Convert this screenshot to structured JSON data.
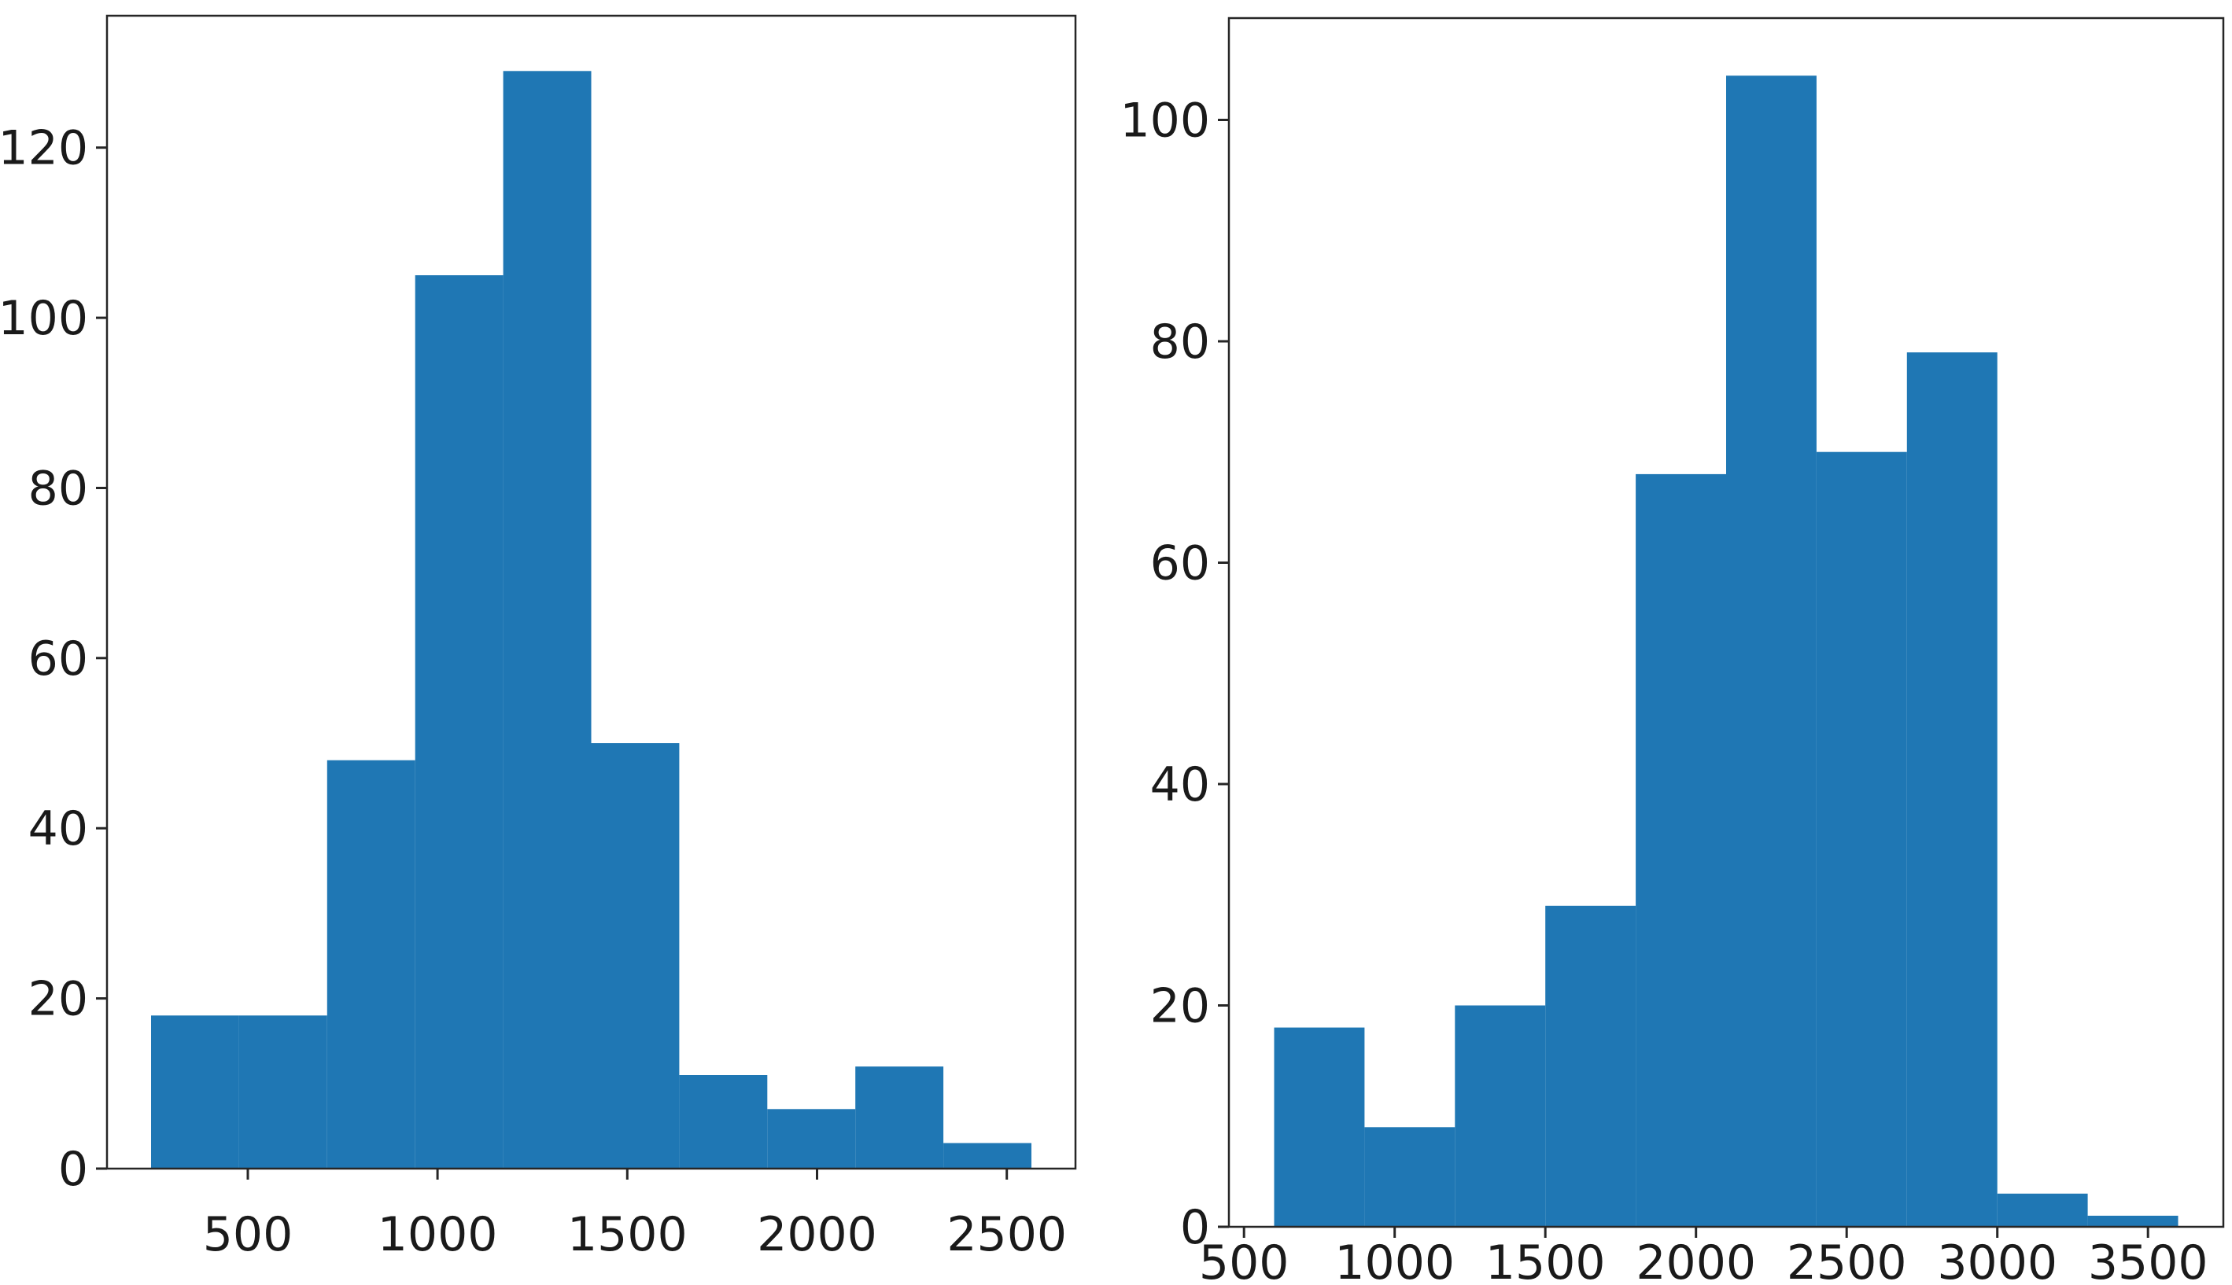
{
  "figure": {
    "background_color": "#ffffff",
    "description_left": "histogram of values, 10 bins, peak 129",
    "description_right": "histogram of values, 10 bins, peak 104"
  },
  "axes_style": {
    "bar_color": "#1f77b4",
    "spine_color": "#262626",
    "tick_color": "#262626",
    "tick_label_color": "#1a1a1a"
  },
  "chart_data": [
    {
      "type": "bar",
      "subtype": "histogram",
      "panel": "left",
      "title": "",
      "xlabel": "",
      "ylabel": "",
      "bin_edges": [
        245,
        477,
        709,
        941,
        1173,
        1405,
        1637,
        1869,
        2101,
        2333,
        2565
      ],
      "counts": [
        18,
        18,
        48,
        105,
        129,
        50,
        11,
        7,
        12,
        3
      ],
      "xticks": [
        500,
        1000,
        1500,
        2000,
        2500
      ],
      "yticks": [
        0,
        20,
        40,
        60,
        80,
        100,
        120
      ],
      "xlim": [
        129,
        2681
      ],
      "ylim": [
        0,
        135.5
      ],
      "grid": false,
      "legend": "none",
      "bar_color": "#1f77b4"
    },
    {
      "type": "bar",
      "subtype": "histogram",
      "panel": "right",
      "title": "",
      "xlabel": "",
      "ylabel": "",
      "bin_edges": [
        600,
        900,
        1200,
        1500,
        1800,
        2100,
        2400,
        2700,
        3000,
        3300,
        3600
      ],
      "counts": [
        18,
        9,
        20,
        29,
        68,
        104,
        70,
        79,
        3,
        1
      ],
      "xticks": [
        500,
        1000,
        1500,
        2000,
        2500,
        3000,
        3500
      ],
      "yticks": [
        0,
        20,
        40,
        60,
        80,
        100
      ],
      "xlim": [
        450,
        3750
      ],
      "ylim": [
        0,
        109.2
      ],
      "grid": false,
      "legend": "none",
      "bar_color": "#1f77b4"
    }
  ]
}
